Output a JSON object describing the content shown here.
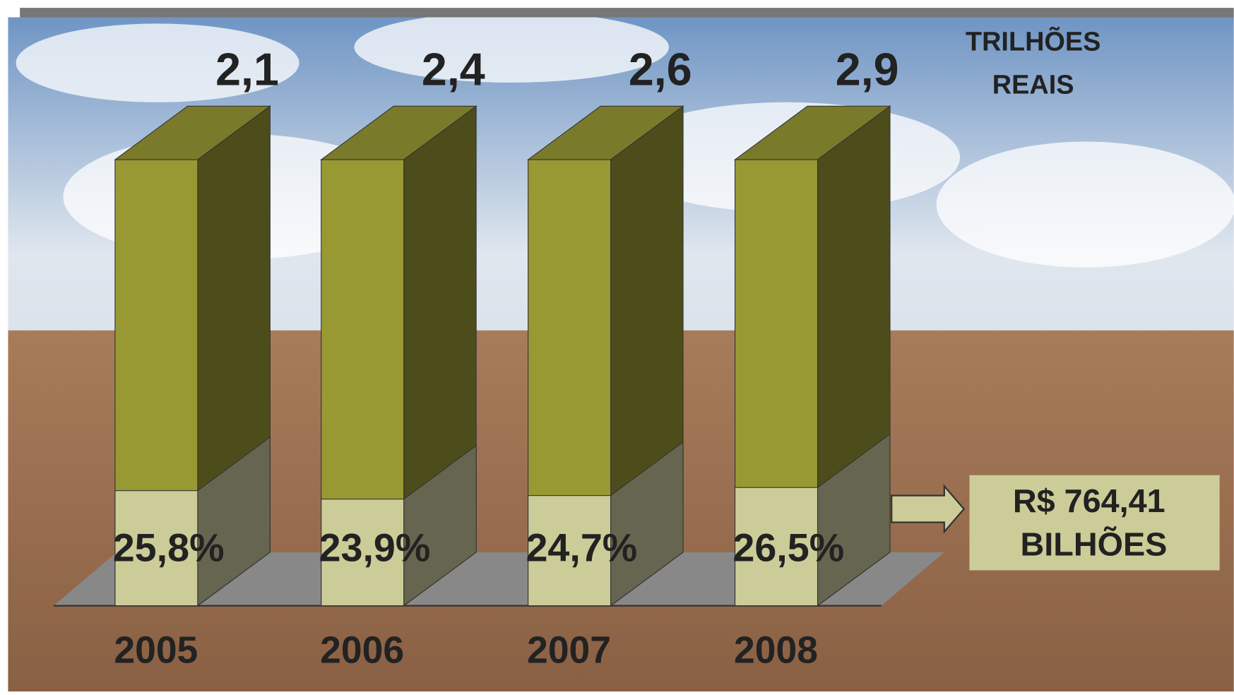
{
  "chart_data": {
    "type": "bar3d-stacked",
    "categories": [
      "2005",
      "2006",
      "2007",
      "2008"
    ],
    "series": [
      {
        "color": "#cccc99",
        "side_color": "#666650",
        "values": [
          25.8,
          23.9,
          24.7,
          26.5
        ],
        "value_labels": [
          "25,8%",
          "23,9%",
          "24,7%",
          "26,5%"
        ]
      }
    ],
    "totals": {
      "values": [
        2.1,
        2.4,
        2.6,
        2.9
      ],
      "value_labels": [
        "2,1",
        "2,4",
        "2,6",
        "2,9"
      ]
    },
    "column_color": "#999933",
    "column_side_color": "#4d4d1c",
    "column_top_color": "#7a7a2b",
    "ylim": [
      0,
      100
    ],
    "unit_label": [
      "TRILHÕES",
      "REAIS"
    ],
    "annotation": [
      "R$ 764,41",
      "BILHÕES"
    ]
  }
}
